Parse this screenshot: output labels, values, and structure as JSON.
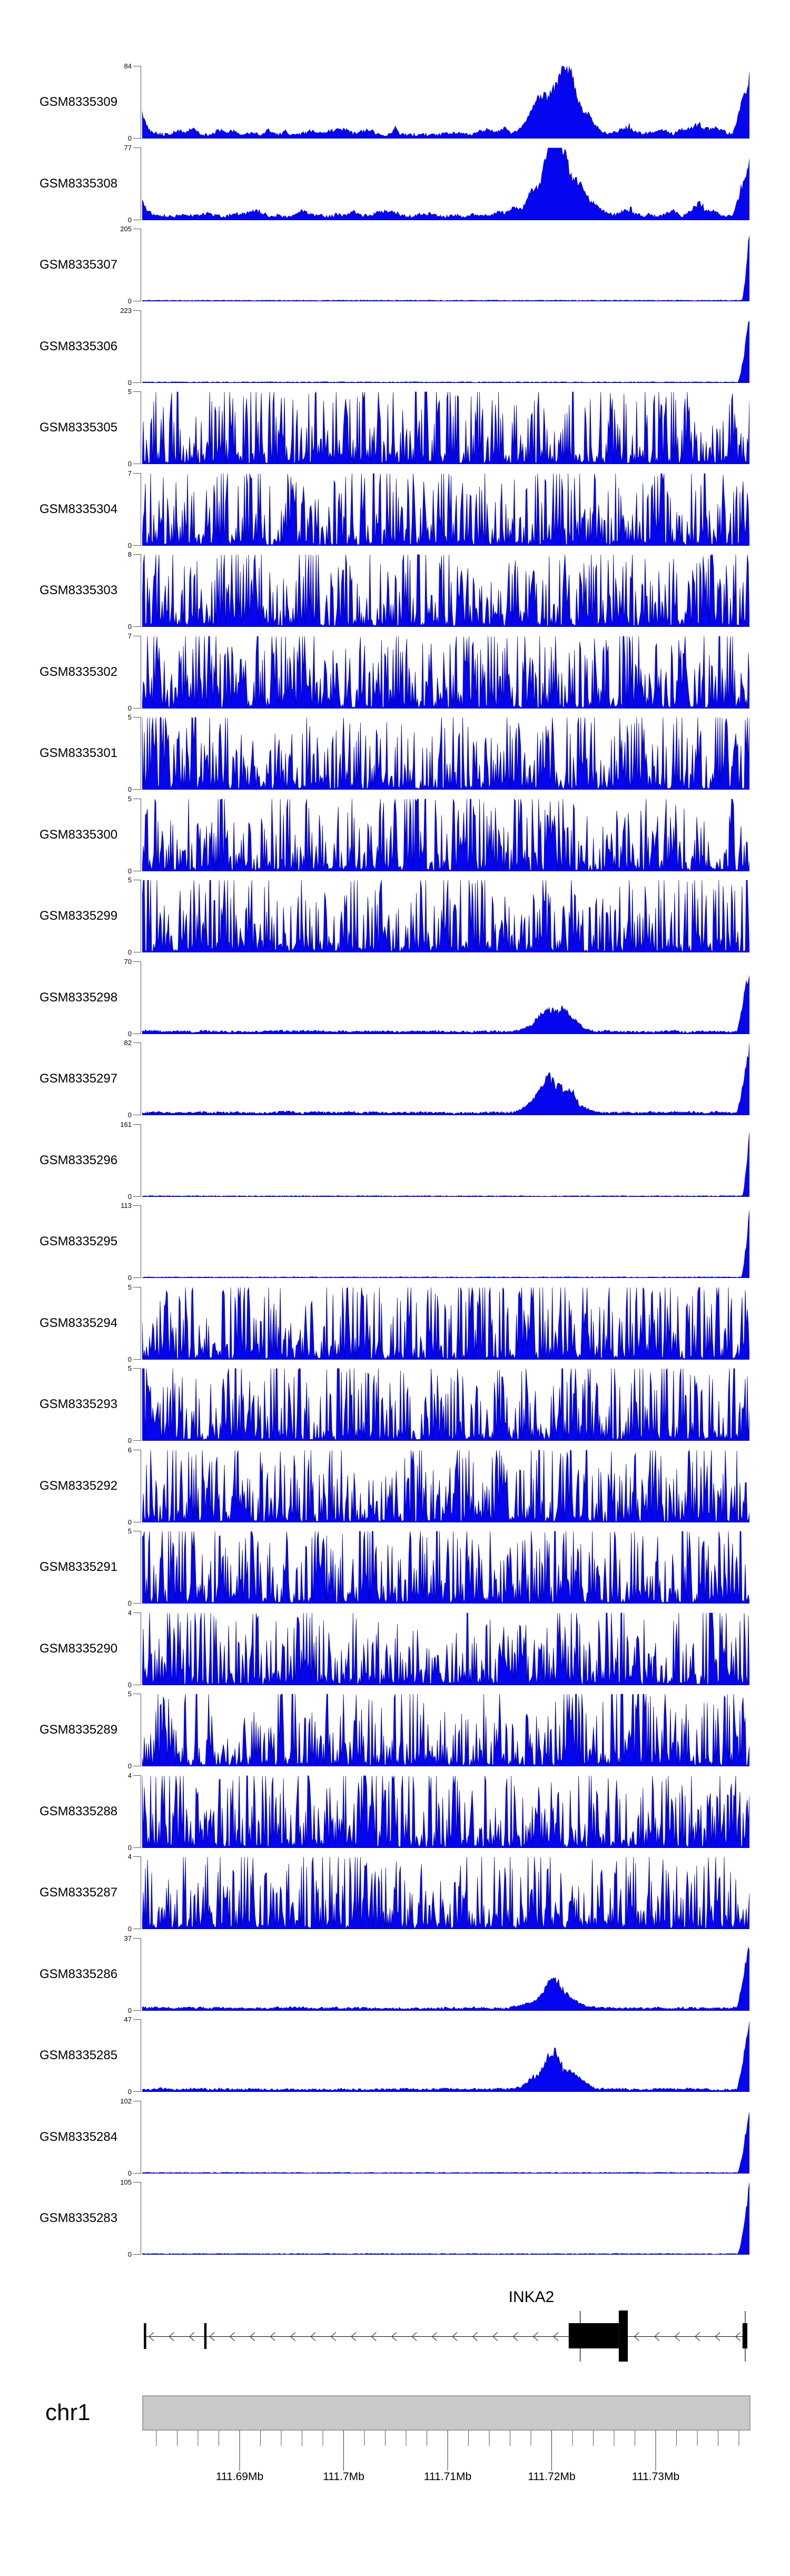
{
  "figure": {
    "background": "#FFFFFF",
    "signal_fill": "#0505EF",
    "signal_edge": "#00008B",
    "axis_color": "#555555",
    "label_color": "#000000",
    "ruler_bar_fill": "#C9C9C9",
    "ruler_bar_border": "#8A8A8A",
    "gene_color": "#000000"
  },
  "chart_data": {
    "type": "area",
    "description": "Genome browser read-coverage tracks (27 GEO samples) over chr1 ~111.68-111.74 Mb around the INKA2 gene; blue filled coverage signal per track with per-track y-axis maxima.",
    "region": {
      "chromosome": "chr1",
      "x_tick_labels": [
        "111.69Mb",
        "111.7Mb",
        "111.71Mb",
        "111.72Mb",
        "111.73Mb"
      ],
      "x_tick_values_mb": [
        111.69,
        111.7,
        111.71,
        111.72,
        111.73
      ],
      "minor_ticks_per_major": 5
    },
    "gene_track": {
      "gene": "INKA2",
      "strand": "-",
      "elements": [
        {
          "type": "exon_bar",
          "x_frac": 0.002
        },
        {
          "type": "exon_bar",
          "x_frac": 0.102
        },
        {
          "type": "thin_exon",
          "x_frac": 0.723
        },
        {
          "type": "cds_box",
          "x0_frac": 0.704,
          "x1_frac": 0.787
        },
        {
          "type": "tall_box",
          "x0_frac": 0.787,
          "x1_frac": 0.802
        },
        {
          "type": "thin_exon",
          "x_frac": 0.9965
        },
        {
          "type": "cds_box",
          "x0_frac": 0.992,
          "x1_frac": 1.0
        }
      ]
    },
    "tracks": [
      {
        "label": "GSM8335309",
        "ymin": 0,
        "ymax": 84,
        "pattern": "bump_end",
        "mound_amp": 0.92,
        "seed": 9
      },
      {
        "label": "GSM8335308",
        "ymin": 0,
        "ymax": 77,
        "pattern": "bump_end",
        "mound_amp": 0.97,
        "seed": 8
      },
      {
        "label": "GSM8335307",
        "ymin": 0,
        "ymax": 205,
        "pattern": "spike_end",
        "spike_w": 0.013,
        "seed": 7
      },
      {
        "label": "GSM8335306",
        "ymin": 0,
        "ymax": 223,
        "pattern": "spike_end",
        "spike_w": 0.02,
        "seed": 6
      },
      {
        "label": "GSM8335305",
        "ymin": 0,
        "ymax": 5,
        "pattern": "dense",
        "seed": 5
      },
      {
        "label": "GSM8335304",
        "ymin": 0,
        "ymax": 7,
        "pattern": "dense",
        "seed": 4
      },
      {
        "label": "GSM8335303",
        "ymin": 0,
        "ymax": 8,
        "pattern": "dense",
        "seed": 3
      },
      {
        "label": "GSM8335302",
        "ymin": 0,
        "ymax": 7,
        "pattern": "dense",
        "seed": 2
      },
      {
        "label": "GSM8335301",
        "ymin": 0,
        "ymax": 5,
        "pattern": "dense",
        "seed": 1
      },
      {
        "label": "GSM8335300",
        "ymin": 0,
        "ymax": 5,
        "pattern": "dense",
        "seed": 10
      },
      {
        "label": "GSM8335299",
        "ymin": 0,
        "ymax": 5,
        "pattern": "dense",
        "seed": 11
      },
      {
        "label": "GSM8335298",
        "ymin": 0,
        "ymax": 70,
        "pattern": "bump_spike_end",
        "mound_amp": 0.33,
        "seed": 12
      },
      {
        "label": "GSM8335297",
        "ymin": 0,
        "ymax": 82,
        "pattern": "bump_spike_end",
        "mound_amp": 0.52,
        "seed": 13
      },
      {
        "label": "GSM8335296",
        "ymin": 0,
        "ymax": 161,
        "pattern": "spike_end",
        "spike_w": 0.012,
        "seed": 14
      },
      {
        "label": "GSM8335295",
        "ymin": 0,
        "ymax": 113,
        "pattern": "spike_end",
        "spike_w": 0.014,
        "seed": 15
      },
      {
        "label": "GSM8335294",
        "ymin": 0,
        "ymax": 5,
        "pattern": "dense",
        "seed": 16
      },
      {
        "label": "GSM8335293",
        "ymin": 0,
        "ymax": 5,
        "pattern": "dense",
        "seed": 17
      },
      {
        "label": "GSM8335292",
        "ymin": 0,
        "ymax": 6,
        "pattern": "dense",
        "seed": 18
      },
      {
        "label": "GSM8335291",
        "ymin": 0,
        "ymax": 5,
        "pattern": "dense",
        "seed": 19
      },
      {
        "label": "GSM8335290",
        "ymin": 0,
        "ymax": 4,
        "pattern": "dense",
        "seed": 20
      },
      {
        "label": "GSM8335289",
        "ymin": 0,
        "ymax": 5,
        "pattern": "dense",
        "seed": 21
      },
      {
        "label": "GSM8335288",
        "ymin": 0,
        "ymax": 4,
        "pattern": "dense",
        "seed": 22
      },
      {
        "label": "GSM8335287",
        "ymin": 0,
        "ymax": 4,
        "pattern": "dense",
        "seed": 23
      },
      {
        "label": "GSM8335286",
        "ymin": 0,
        "ymax": 37,
        "pattern": "bump_spike_end",
        "mound_amp": 0.36,
        "seed": 24
      },
      {
        "label": "GSM8335285",
        "ymin": 0,
        "ymax": 47,
        "pattern": "bump_spike_end",
        "mound_amp": 0.46,
        "seed": 25
      },
      {
        "label": "GSM8335284",
        "ymin": 0,
        "ymax": 102,
        "pattern": "spike_end",
        "spike_w": 0.02,
        "seed": 26
      },
      {
        "label": "GSM8335283",
        "ymin": 0,
        "ymax": 105,
        "pattern": "spike_end",
        "spike_w": 0.02,
        "seed": 27
      }
    ]
  }
}
